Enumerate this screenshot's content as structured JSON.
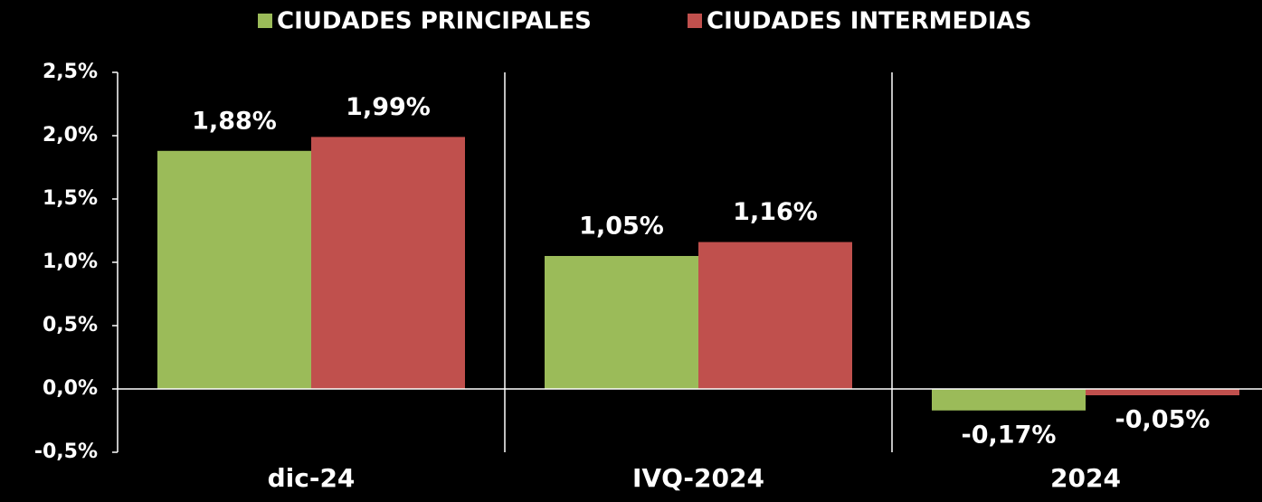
{
  "chart_data": {
    "type": "bar",
    "categories": [
      "dic-24",
      "IVQ-2024",
      "2024"
    ],
    "series": [
      {
        "name": "CIUDADES PRINCIPALES",
        "color": "#9bbb59",
        "values": [
          1.88,
          1.05,
          -0.17
        ],
        "value_labels": [
          "1,88%",
          "1,05%",
          "-0,17%"
        ]
      },
      {
        "name": "CIUDADES INTERMEDIAS",
        "color": "#c0504d",
        "values": [
          1.99,
          1.16,
          -0.05
        ],
        "value_labels": [
          "1,99%",
          "1,16%",
          "-0,05%"
        ]
      }
    ],
    "ylim": [
      -0.5,
      2.5
    ],
    "yticks": [
      {
        "value": -0.5,
        "label": "-0,5%"
      },
      {
        "value": 0,
        "label": "0,0%"
      },
      {
        "value": 0.5,
        "label": "0,5%"
      },
      {
        "value": 1,
        "label": "1,0%"
      },
      {
        "value": 1.5,
        "label": "1,5%"
      },
      {
        "value": 2,
        "label": "2,0%"
      },
      {
        "value": 2.5,
        "label": "2,5%"
      }
    ],
    "grid": false,
    "legend": "top"
  }
}
